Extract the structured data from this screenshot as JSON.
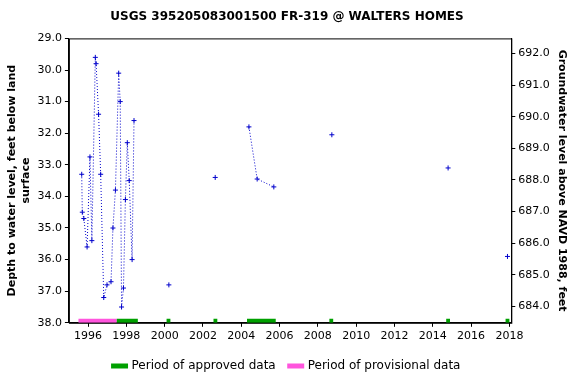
{
  "chart_data": {
    "type": "line",
    "title": "USGS 395205083001500 FR-319 @ WALTERS HOMES",
    "y_label": "Depth to water level, feet below land surface",
    "y2_label": "Groundwater level above NAVD 1988, feet",
    "x": [
      1995.67,
      1995.7,
      1995.78,
      1995.95,
      1996.1,
      1996.2,
      1996.38,
      1996.42,
      1996.55,
      1996.66,
      1996.82,
      1996.99,
      1997.2,
      1997.3,
      1997.43,
      1997.6,
      1997.68,
      1997.75,
      1997.85,
      1997.95,
      1998.05,
      1998.15,
      1998.3,
      1998.4,
      1999.3,
      2000.22,
      2001.4,
      2002.64,
      2003.5,
      2004.4,
      2004.83,
      2005.7,
      2007.2,
      2008.73,
      2011.8,
      2014.8,
      2016.3,
      2017.9
    ],
    "series": [
      {
        "color": "#0000cc",
        "marker": "cross",
        "line_style": "dotted",
        "values": [
          33.3,
          34.5,
          34.7,
          35.6,
          32.75,
          35.4,
          29.6,
          29.8,
          31.4,
          33.3,
          37.2,
          36.8,
          36.7,
          35.0,
          33.8,
          30.1,
          31.0,
          37.5,
          36.9,
          34.1,
          32.3,
          33.5,
          36.0,
          31.6,
          null,
          36.8,
          null,
          33.4,
          null,
          31.8,
          33.45,
          33.7,
          null,
          32.05,
          null,
          33.1,
          null,
          35.9
        ]
      }
    ],
    "periods": [
      {
        "name": "Period of approved data",
        "color": "#00a000",
        "ranges": [
          [
            1997.5,
            1998.6
          ],
          [
            2000.1,
            2000.3
          ],
          [
            2002.55,
            2002.75
          ],
          [
            2004.3,
            2005.8
          ],
          [
            2008.6,
            2008.8
          ],
          [
            2014.7,
            2014.9
          ],
          [
            2017.8,
            2018.0
          ]
        ]
      },
      {
        "name": "Period of provisional data",
        "color": "#ff55dd",
        "ranges": [
          [
            1995.5,
            1997.5
          ]
        ]
      }
    ],
    "xlim": [
      1995.0,
      2018.1
    ],
    "xticks": [
      1996,
      1998,
      2000,
      2002,
      2004,
      2006,
      2008,
      2010,
      2012,
      2014,
      2016,
      2018
    ],
    "ylim": [
      38,
      29
    ],
    "yticks": [
      {
        "value": 29,
        "label": "29.0"
      },
      {
        "value": 30,
        "label": "30.0"
      },
      {
        "value": 31,
        "label": "31.0"
      },
      {
        "value": 32,
        "label": "32.0"
      },
      {
        "value": 33,
        "label": "33.0"
      },
      {
        "value": 34,
        "label": "34.0"
      },
      {
        "value": 35,
        "label": "35.0"
      },
      {
        "value": 36,
        "label": "36.0"
      },
      {
        "value": 37,
        "label": "37.0"
      },
      {
        "value": 38,
        "label": "38.0"
      }
    ],
    "y2lim": [
      683.48,
      692.48
    ],
    "y2ticks": [
      {
        "value": 684,
        "label": "684.0"
      },
      {
        "value": 685,
        "label": "685.0"
      },
      {
        "value": 686,
        "label": "686.0"
      },
      {
        "value": 687,
        "label": "687.0"
      },
      {
        "value": 688,
        "label": "688.0"
      },
      {
        "value": 689,
        "label": "689.0"
      },
      {
        "value": 690,
        "label": "690.0"
      },
      {
        "value": 691,
        "label": "691.0"
      },
      {
        "value": 692,
        "label": "692.0"
      }
    ],
    "grid": false,
    "legend": "bottom"
  }
}
